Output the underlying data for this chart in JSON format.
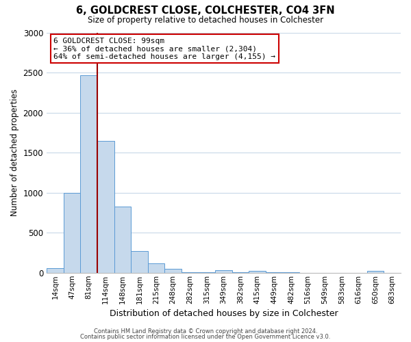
{
  "title": "6, GOLDCREST CLOSE, COLCHESTER, CO4 3FN",
  "subtitle": "Size of property relative to detached houses in Colchester",
  "xlabel": "Distribution of detached houses by size in Colchester",
  "ylabel": "Number of detached properties",
  "bar_labels": [
    "14sqm",
    "47sqm",
    "81sqm",
    "114sqm",
    "148sqm",
    "181sqm",
    "215sqm",
    "248sqm",
    "282sqm",
    "315sqm",
    "349sqm",
    "382sqm",
    "415sqm",
    "449sqm",
    "482sqm",
    "516sqm",
    "549sqm",
    "583sqm",
    "616sqm",
    "650sqm",
    "683sqm"
  ],
  "bar_values": [
    55,
    1000,
    2470,
    1650,
    830,
    270,
    120,
    50,
    5,
    5,
    30,
    5,
    20,
    10,
    5,
    0,
    0,
    0,
    0,
    20,
    0
  ],
  "bar_color": "#c6d9ec",
  "bar_edge_color": "#5b9bd5",
  "vline_color": "#990000",
  "annotation_title": "6 GOLDCREST CLOSE: 99sqm",
  "annotation_line1": "← 36% of detached houses are smaller (2,304)",
  "annotation_line2": "64% of semi-detached houses are larger (4,155) →",
  "ylim": [
    0,
    3000
  ],
  "yticks": [
    0,
    500,
    1000,
    1500,
    2000,
    2500,
    3000
  ],
  "footer1": "Contains HM Land Registry data © Crown copyright and database right 2024.",
  "footer2": "Contains public sector information licensed under the Open Government Licence v3.0.",
  "background_color": "#ffffff",
  "grid_color": "#c8d8e8"
}
